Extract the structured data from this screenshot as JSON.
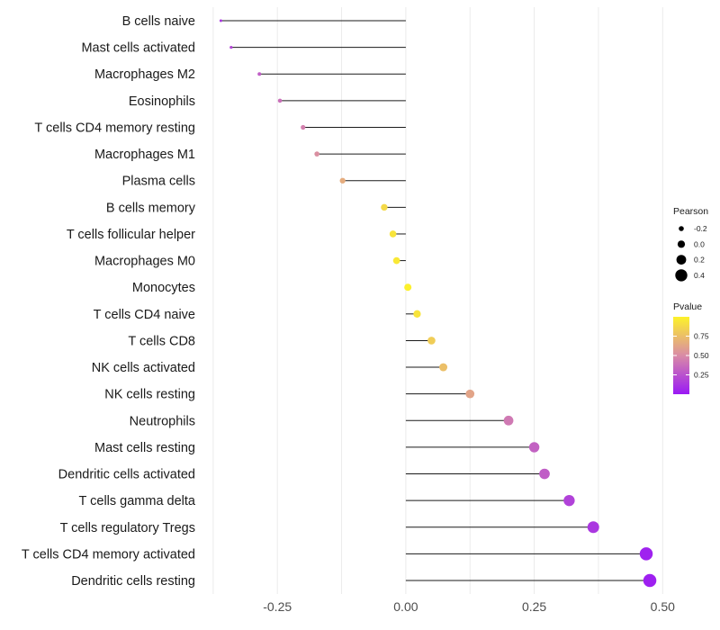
{
  "chart_data": {
    "type": "lollipop",
    "title": "",
    "xlabel": "",
    "ylabel": "",
    "xlim": [
      -0.38,
      0.51
    ],
    "xticks": [
      -0.25,
      0.0,
      0.25,
      0.5
    ],
    "xtick_labels": [
      "-0.25",
      "0.00",
      "0.25",
      "0.50"
    ],
    "categories": [
      "B cells naive",
      "Mast cells activated",
      "Macrophages M2",
      "Eosinophils",
      "T cells CD4 memory resting",
      "Macrophages M1",
      "Plasma cells",
      "B cells memory",
      "T cells follicular helper",
      "Macrophages M0",
      "Monocytes",
      "T cells CD4 naive",
      "T cells CD8",
      "NK cells activated",
      "NK cells resting",
      "Neutrophils",
      "Mast cells resting",
      "Dendritic cells activated",
      "T cells gamma delta",
      "T cells regulatory  Tregs ",
      "T cells CD4 memory activated",
      "Dendritic cells resting"
    ],
    "values": [
      -0.36,
      -0.34,
      -0.285,
      -0.245,
      -0.2,
      -0.173,
      -0.123,
      -0.042,
      -0.025,
      -0.018,
      0.004,
      0.022,
      0.05,
      0.073,
      0.125,
      0.2,
      0.25,
      0.27,
      0.318,
      0.365,
      0.468,
      0.475
    ],
    "pvalues": [
      0.12,
      0.2,
      0.3,
      0.38,
      0.45,
      0.52,
      0.66,
      0.88,
      0.93,
      0.95,
      0.99,
      0.93,
      0.82,
      0.75,
      0.62,
      0.42,
      0.32,
      0.3,
      0.18,
      0.13,
      0.04,
      0.03
    ],
    "legend": {
      "size_title": "Pearson",
      "size_labels": [
        "-0.2",
        "0.0",
        "0.2",
        "0.4"
      ],
      "size_values": [
        -0.2,
        0.0,
        0.2,
        0.4
      ],
      "color_title": "Pvalue",
      "color_labels": [
        "0.75",
        "0.50",
        "0.25"
      ],
      "color_values": [
        0.75,
        0.5,
        0.25
      ],
      "color_range": [
        0.0,
        1.0
      ],
      "position": "right"
    },
    "colors": {
      "low": "#9a19f5",
      "mid": "#d98ba6",
      "high": "#fdf22a",
      "line": "#1a1a1a",
      "grid": "#ebebeb"
    }
  }
}
